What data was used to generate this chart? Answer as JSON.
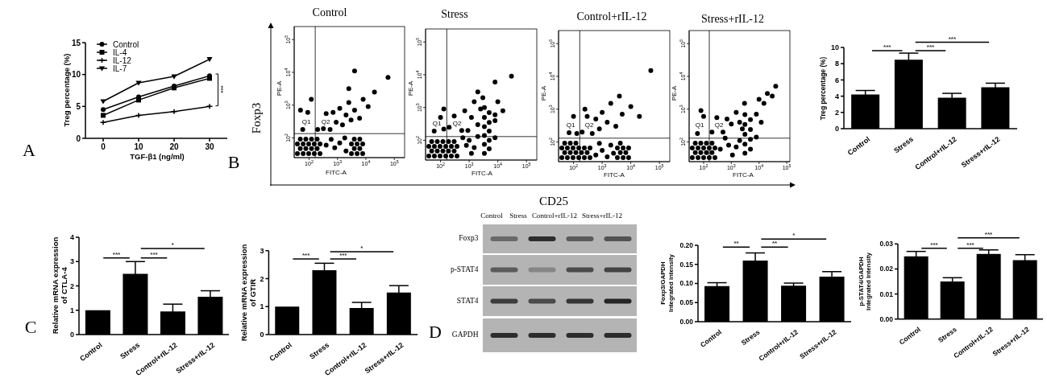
{
  "chart_data": [
    {
      "type": "line",
      "x": [
        0,
        10,
        20,
        30
      ],
      "xlim": [
        -5,
        35
      ],
      "xticks": [
        0,
        10,
        20,
        30
      ],
      "ylim": [
        0,
        15
      ],
      "yticks": [
        0,
        5,
        10,
        15
      ],
      "xlabel": "TGF-β1 (ng/ml)",
      "ylabel": "Treg percentage (%)",
      "legend": "top left",
      "series": [
        {
          "name": "Control",
          "color": "#000000",
          "marker": "circle",
          "values": [
            4.5,
            6.5,
            8.2,
            9.8
          ]
        },
        {
          "name": "IL-4",
          "color": "#000000",
          "marker": "square",
          "values": [
            3.6,
            6.0,
            7.9,
            9.4
          ]
        },
        {
          "name": "IL-12",
          "color": "#000000",
          "marker": "cross",
          "values": [
            2.5,
            3.6,
            4.2,
            5.0
          ]
        },
        {
          "name": "IL-7",
          "color": "#000000",
          "marker": "triangle",
          "values": [
            5.8,
            8.7,
            9.7,
            12.4
          ]
        }
      ],
      "annotations": [
        "A",
        "***"
      ]
    },
    {
      "type": "scatter",
      "title": "Control",
      "xlabel": "FITC-A",
      "ylabel": "PE-A",
      "log": "xy",
      "xlim": [
        30,
        230000
      ],
      "ylim": [
        25,
        250000
      ],
      "xticks": [
        {
          "value": 100,
          "label": "10$^{2}$"
        },
        {
          "value": 1000,
          "label": "10$^{3}$"
        },
        {
          "value": 10000,
          "label": "10$^{4}$"
        },
        {
          "value": 100000,
          "label": "10$^{5}$"
        }
      ],
      "yticks": [
        {
          "value": 100,
          "label": "10$^{2}$"
        },
        {
          "value": 1000,
          "label": "10$^{3}$"
        },
        {
          "value": 10000,
          "label": "10$^{4}$"
        },
        {
          "value": 100000,
          "label": "10$^{5}$"
        }
      ],
      "color": "#000000",
      "x": [
        39,
        62,
        97,
        153,
        243,
        49,
        77,
        122,
        193,
        39,
        62,
        97,
        153,
        243,
        49,
        77,
        122,
        193,
        400,
        600,
        800,
        1200,
        1800,
        2000,
        3100,
        4900,
        7700,
        3900,
        6100,
        3100,
        4900,
        7700,
        3900,
        6100,
        200,
        320,
        400,
        550,
        700,
        900,
        1200,
        1500,
        2000,
        2500,
        3000,
        4000,
        6000,
        8000,
        12000,
        20000,
        2500,
        4000,
        60000,
        60,
        90,
        120,
        50
      ],
      "values": [
        33,
        33,
        33,
        33,
        33,
        47,
        47,
        47,
        47,
        65,
        65,
        65,
        65,
        65,
        92,
        92,
        92,
        92,
        60,
        90,
        50,
        70,
        100,
        40,
        33,
        33,
        33,
        47,
        47,
        65,
        65,
        65,
        92,
        92,
        180,
        190,
        550,
        180,
        600,
        300,
        800,
        250,
        500,
        1200,
        350,
        700,
        400,
        1500,
        900,
        2500,
        3200,
        11000,
        7000,
        180,
        600,
        1500,
        700
      ],
      "ref_lines": [
        {
          "axis": "x",
          "value": 165
        },
        {
          "axis": "y",
          "value": 135
        }
      ],
      "annotations": [
        "Q1",
        "Q2",
        "B",
        "Foxp3",
        "CD25"
      ]
    },
    {
      "type": "scatter",
      "title": "Stress",
      "xlabel": "FITC-A",
      "ylabel": "PE-A",
      "log": "xy",
      "xlim": [
        30,
        230000
      ],
      "ylim": [
        25,
        250000
      ],
      "xticks": [
        {
          "value": 100,
          "label": "10$^{2}$"
        },
        {
          "value": 1000,
          "label": "10$^{3}$"
        },
        {
          "value": 10000,
          "label": "10$^{4}$"
        },
        {
          "value": 100000,
          "label": "10$^{5}$"
        }
      ],
      "yticks": [
        {
          "value": 100,
          "label": "10$^{2}$"
        },
        {
          "value": 1000,
          "label": "10$^{3}$"
        },
        {
          "value": 10000,
          "label": "10$^{4}$"
        },
        {
          "value": 100000,
          "label": "10$^{5}$"
        }
      ],
      "color": "#000000",
      "x": [
        39,
        61,
        96,
        152,
        239,
        376,
        49,
        77,
        121,
        190,
        299,
        39,
        61,
        96,
        152,
        239,
        376,
        49,
        77,
        121,
        190,
        299,
        600,
        800,
        1000,
        1500,
        2000,
        1200,
        3400,
        5000,
        3400,
        5000,
        3400,
        5000,
        3400,
        5000,
        3400,
        5000,
        3400,
        8000,
        200,
        300,
        550,
        700,
        900,
        1200,
        1500,
        2000,
        2500,
        3000,
        8000,
        8000,
        10000,
        15000,
        8000,
        30000,
        2000,
        60,
        130,
        100,
        130
      ],
      "values": [
        33,
        33,
        33,
        33,
        33,
        33,
        47,
        47,
        47,
        47,
        47,
        65,
        65,
        65,
        65,
        65,
        65,
        92,
        92,
        92,
        92,
        92,
        120,
        70,
        100,
        60,
        130,
        40,
        40,
        55,
        75,
        100,
        140,
        190,
        260,
        350,
        500,
        700,
        1000,
        120,
        250,
        550,
        200,
        800,
        200,
        500,
        1500,
        300,
        900,
        2000,
        600,
        400,
        1500,
        800,
        6000,
        9000,
        3000,
        190,
        220,
        500,
        900
      ],
      "ref_lines": [
        {
          "axis": "x",
          "value": 165
        },
        {
          "axis": "y",
          "value": 130
        }
      ],
      "annotations": [
        "Q1",
        "Q2"
      ]
    },
    {
      "type": "scatter",
      "title": "Control+rIL-12",
      "xlabel": "FITC-A",
      "ylabel": "PE-A",
      "log": "xy",
      "xlim": [
        30,
        230000
      ],
      "ylim": [
        25,
        250000
      ],
      "xticks": [
        {
          "value": 100,
          "label": "10$^{2}$"
        },
        {
          "value": 1000,
          "label": "10$^{3}$"
        },
        {
          "value": 10000,
          "label": "10$^{4}$"
        },
        {
          "value": 100000,
          "label": "10$^{5}$"
        }
      ],
      "yticks": [
        {
          "value": 100,
          "label": "10$^{2}$"
        },
        {
          "value": 1000,
          "label": "10$^{3}$"
        },
        {
          "value": 10000,
          "label": "10$^{4}$"
        },
        {
          "value": 100000,
          "label": "10$^{5}$"
        }
      ],
      "color": "#000000",
      "x": [
        39,
        61,
        96,
        152,
        239,
        376,
        49,
        77,
        121,
        190,
        299,
        39,
        61,
        96,
        152,
        239,
        376,
        49,
        77,
        121,
        600,
        800,
        1000,
        1500,
        2000,
        2500,
        3400,
        5400,
        8400,
        4300,
        6700,
        3400,
        5400,
        8400,
        4300,
        200,
        300,
        450,
        600,
        800,
        1000,
        1500,
        2000,
        3000,
        4000,
        5000,
        10000,
        20000,
        50000,
        250,
        70,
        100,
        130
      ],
      "values": [
        33,
        33,
        33,
        33,
        33,
        33,
        47,
        47,
        47,
        47,
        47,
        65,
        65,
        65,
        65,
        65,
        65,
        92,
        92,
        92,
        40,
        90,
        55,
        35,
        80,
        45,
        33,
        33,
        33,
        47,
        47,
        65,
        65,
        65,
        92,
        200,
        600,
        180,
        500,
        250,
        800,
        400,
        1500,
        300,
        2500,
        700,
        1200,
        600,
        15000,
        1000,
        190,
        600,
        180
      ],
      "ref_lines": [
        {
          "axis": "x",
          "value": 165
        },
        {
          "axis": "y",
          "value": 130
        }
      ],
      "annotations": [
        "Q1",
        "Q2"
      ]
    },
    {
      "type": "scatter",
      "title": "Stress+rIL-12",
      "xlabel": "FITC-A",
      "ylabel": "PE-A",
      "log": "xy",
      "xlim": [
        30,
        130000
      ],
      "ylim": [
        25,
        250000
      ],
      "xticks": [
        {
          "value": 100,
          "label": "10$^{2}$"
        },
        {
          "value": 1000,
          "label": "10$^{3}$"
        },
        {
          "value": 10000,
          "label": "10$^{4}$"
        },
        {
          "value": 100000,
          "label": "10$^{5}$"
        }
      ],
      "yticks": [
        {
          "value": 100,
          "label": "10$^{2}$"
        },
        {
          "value": 1000,
          "label": "10$^{3}$"
        },
        {
          "value": 10000,
          "label": "10$^{4}$"
        },
        {
          "value": 100000,
          "label": "10$^{5}$"
        }
      ],
      "color": "#000000",
      "x": [
        39,
        63,
        100,
        160,
        256,
        50,
        79,
        126,
        201,
        39,
        63,
        100,
        160,
        256,
        50,
        79,
        126,
        201,
        400,
        600,
        800,
        1100,
        1500,
        2000,
        3100,
        4900,
        3100,
        4900,
        3100,
        4900,
        3100,
        4900,
        3100,
        8000,
        200,
        300,
        500,
        700,
        1000,
        1500,
        2000,
        3000,
        2500,
        8000,
        10000,
        15000,
        20000,
        40000,
        30000,
        12000,
        60,
        100,
        80
      ],
      "values": [
        33,
        33,
        33,
        33,
        33,
        47,
        47,
        47,
        47,
        65,
        65,
        65,
        65,
        65,
        92,
        92,
        92,
        92,
        60,
        130,
        80,
        40,
        70,
        110,
        45,
        60,
        85,
        120,
        170,
        240,
        340,
        480,
        680,
        140,
        200,
        550,
        200,
        500,
        350,
        800,
        400,
        1500,
        250,
        700,
        2000,
        1500,
        3000,
        5000,
        2500,
        400,
        180,
        600,
        900
      ],
      "ref_lines": [
        {
          "axis": "x",
          "value": 160
        },
        {
          "axis": "y",
          "value": 130
        }
      ],
      "annotations": [
        "Q1",
        "Q2"
      ]
    },
    {
      "type": "bar",
      "categories": [
        "Control",
        "Stress",
        "Control+rIL-12",
        "Stress+rIL-12"
      ],
      "values": [
        4.2,
        8.5,
        3.8,
        5.1
      ],
      "errors": [
        0.5,
        0.8,
        0.55,
        0.5
      ],
      "color": "#000000",
      "ylim": [
        0,
        10
      ],
      "yticks": [
        0,
        2,
        4,
        6,
        8,
        10
      ],
      "ylabel": "Treg percentage (%)",
      "annotations": [
        "***",
        "***",
        "***"
      ]
    },
    {
      "type": "bar",
      "categories": [
        "Control",
        "Stress",
        "Control+rIL-12",
        "Stress+rIL-12"
      ],
      "values": [
        1.0,
        2.5,
        0.95,
        1.55
      ],
      "errors": [
        null,
        0.5,
        0.3,
        0.25
      ],
      "color": "#000000",
      "ylim": [
        0,
        4
      ],
      "yticks": [
        0,
        1,
        2,
        3,
        4
      ],
      "ylabel": "Relative mRNA expression\nof CTLA-4",
      "annotations": [
        "C",
        "***",
        "***",
        "*"
      ]
    },
    {
      "type": "bar",
      "categories": [
        "Control",
        "Stress",
        "Control+rIL-12",
        "Stress+rIL-12"
      ],
      "values": [
        1.0,
        2.3,
        0.95,
        1.5
      ],
      "errors": [
        null,
        0.25,
        0.2,
        0.25
      ],
      "color": "#000000",
      "ylim": [
        0,
        3
      ],
      "yticks": [
        0,
        1,
        2,
        3
      ],
      "ylabel": "Relative mRNA expression\nof GTIR",
      "annotations": [
        "***",
        "***",
        "*"
      ]
    },
    {
      "type": "other",
      "categories": [
        "Control",
        "Stress",
        "Control+rIL-12",
        "Stress+rIL-12"
      ],
      "y_categories": [
        "Foxp3",
        "p-STAT4",
        "STAT4",
        "GAPDH"
      ],
      "annotations": [
        "D"
      ]
    },
    {
      "type": "bar",
      "categories": [
        "Control",
        "Stress",
        "Control+rIL-12",
        "Stress+rIL-12"
      ],
      "values": [
        0.093,
        0.16,
        0.094,
        0.118
      ],
      "errors": [
        0.009,
        0.02,
        0.007,
        0.013
      ],
      "color": "#000000",
      "ylim": [
        0,
        0.2
      ],
      "yticks": [
        {
          "value": 0,
          "label": "0.00"
        },
        0.05,
        {
          "value": 0.1,
          "label": "0.10"
        },
        0.15,
        {
          "value": 0.2,
          "label": "0.20"
        }
      ],
      "ylabel": "Foxp3/GAPDH\nIntegrated intensity",
      "annotations": [
        "**",
        "**",
        "*"
      ]
    },
    {
      "type": "bar",
      "categories": [
        "Control",
        "Stress",
        "Control+rIL-12",
        "Stress+rIL-12"
      ],
      "values": [
        0.025,
        0.015,
        0.026,
        0.0235
      ],
      "errors": [
        0.002,
        0.0015,
        0.0016,
        0.0022
      ],
      "color": "#000000",
      "ylim": [
        0,
        0.03
      ],
      "yticks": [
        {
          "value": 0,
          "label": "0.00"
        },
        0.01,
        0.02,
        0.03
      ],
      "ylabel": "p-STAT4/GAPDH\nIntegrated Intensity",
      "annotations": [
        "***",
        "***",
        "***"
      ]
    }
  ]
}
